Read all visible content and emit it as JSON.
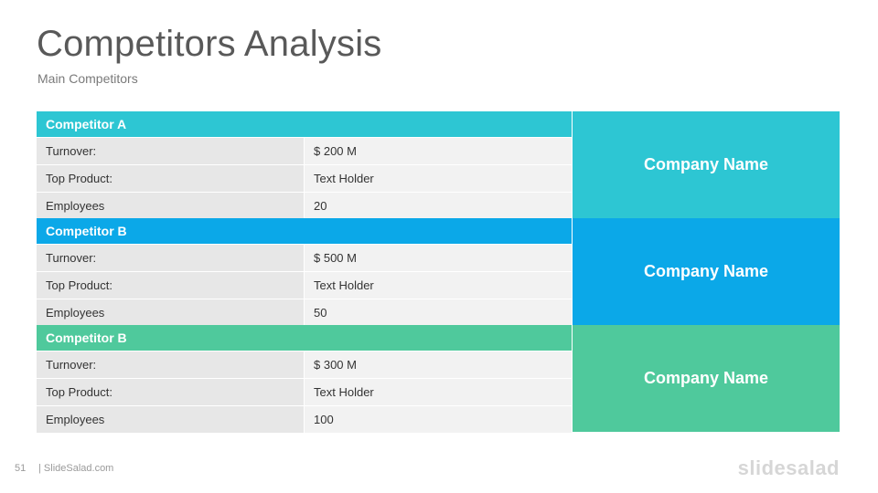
{
  "header": {
    "title": "Competitors Analysis",
    "subtitle": "Main Competitors"
  },
  "colors": {
    "teal": "#2dc6d3",
    "blue": "#0ba8e8",
    "green": "#4fc99c"
  },
  "competitors": [
    {
      "name": "Competitor A",
      "company": "Company Name",
      "rows": [
        {
          "label": "Turnover:",
          "value": "$ 200  M"
        },
        {
          "label": "Top Product:",
          "value": "Text Holder"
        },
        {
          "label": "Employees",
          "value": "20"
        }
      ]
    },
    {
      "name": "Competitor B",
      "company": "Company Name",
      "rows": [
        {
          "label": "Turnover:",
          "value": "$ 500  M"
        },
        {
          "label": "Top Product:",
          "value": "Text Holder"
        },
        {
          "label": "Employees",
          "value": "50"
        }
      ]
    },
    {
      "name": "Competitor B",
      "company": "Company Name",
      "rows": [
        {
          "label": "Turnover:",
          "value": "$ 300  M"
        },
        {
          "label": "Top Product:",
          "value": "Text Holder"
        },
        {
          "label": "Employees",
          "value": "100"
        }
      ]
    }
  ],
  "footer": {
    "page_number": "51",
    "site": "| SlideSalad.com",
    "logo": "slidesalad"
  }
}
